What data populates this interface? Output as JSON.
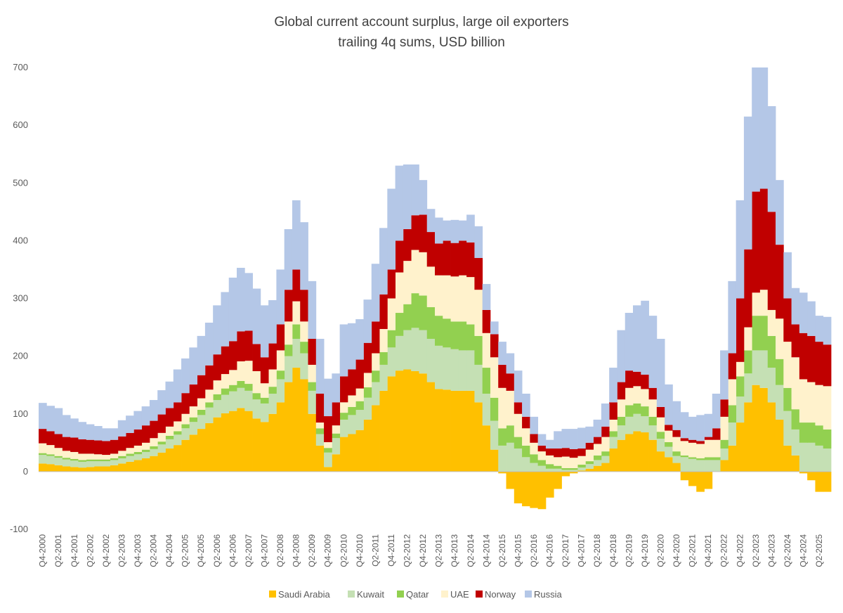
{
  "chart_data": {
    "type": "stacked_bar",
    "title": "Global current account surplus, large oil exporters",
    "subtitle": "trailing 4q sums, USD billion",
    "categories": [
      "Q4-2000",
      null,
      "Q2-2001",
      null,
      "Q4-2001",
      null,
      "Q2-2002",
      null,
      "Q4-2002",
      null,
      "Q2-2003",
      null,
      "Q4-2003",
      null,
      "Q2-2004",
      null,
      "Q4-2004",
      null,
      "Q2-2005",
      null,
      "Q4-2005",
      null,
      "Q2-2006",
      null,
      "Q4-2006",
      null,
      "Q2-2007",
      null,
      "Q4-2007",
      null,
      "Q2-2008",
      null,
      "Q4-2008",
      null,
      "Q2-2009",
      null,
      "Q4-2009",
      null,
      "Q2-2010",
      null,
      "Q4-2010",
      null,
      "Q2-2011",
      null,
      "Q4-2011",
      null,
      "Q2-2012",
      null,
      "Q4-2012",
      null,
      "Q2-2013",
      null,
      "Q4-2013",
      null,
      "Q2-2014",
      null,
      "Q4-2014",
      null,
      "Q2-2015",
      null,
      "Q4-2015",
      null,
      "Q2-2016",
      null,
      "Q4-2016",
      null,
      "Q2-2017",
      null,
      "Q4-2017",
      null,
      "Q2-2018",
      null,
      "Q4-2018",
      null,
      "Q2-2019",
      null,
      "Q4-2019",
      null,
      "Q2-2020",
      null,
      "Q4-2020",
      null,
      "Q2-2021",
      null,
      "Q4-2021",
      null,
      "Q2-2022",
      null,
      "Q4-2022",
      null,
      "Q2-2023",
      null,
      "Q4-2023",
      null,
      "Q2-2024",
      null,
      "Q4-2024",
      null,
      "Q2-2025",
      null
    ],
    "series": [
      {
        "name": "Saudi Arabia",
        "color": "#ffc000",
        "values": [
          14,
          13,
          11,
          9,
          8,
          7,
          8,
          9,
          9,
          11,
          14,
          17,
          20,
          23,
          27,
          33,
          40,
          46,
          55,
          64,
          74,
          84,
          94,
          101,
          105,
          110,
          105,
          92,
          86,
          100,
          120,
          155,
          180,
          160,
          100,
          45,
          8,
          30,
          60,
          65,
          72,
          90,
          115,
          140,
          165,
          175,
          177,
          174,
          170,
          155,
          143,
          142,
          140,
          140,
          140,
          120,
          80,
          38,
          -3,
          -30,
          -55,
          -60,
          -63,
          -65,
          -45,
          -30,
          -8,
          -3,
          2,
          5,
          10,
          15,
          40,
          55,
          65,
          70,
          68,
          55,
          35,
          25,
          15,
          -15,
          -25,
          -35,
          -30,
          0,
          20,
          45,
          85,
          120,
          150,
          145,
          120,
          90,
          45,
          28,
          -3,
          -15,
          -35,
          -35
        ]
      },
      {
        "name": "Kuwait",
        "color": "#c5e0b4",
        "values": [
          15,
          14,
          13,
          12,
          11,
          10,
          10,
          9,
          9,
          9,
          9,
          10,
          10,
          11,
          12,
          14,
          16,
          18,
          20,
          22,
          24,
          27,
          30,
          32,
          34,
          35,
          35,
          33,
          32,
          35,
          40,
          45,
          50,
          45,
          40,
          20,
          25,
          28,
          30,
          33,
          35,
          38,
          40,
          45,
          50,
          60,
          68,
          75,
          75,
          75,
          75,
          73,
          72,
          70,
          70,
          65,
          55,
          50,
          45,
          50,
          40,
          25,
          15,
          10,
          5,
          5,
          3,
          3,
          5,
          8,
          10,
          12,
          20,
          25,
          30,
          30,
          28,
          25,
          22,
          18,
          12,
          25,
          22,
          20,
          20,
          20,
          20,
          40,
          45,
          50,
          60,
          65,
          60,
          60,
          60,
          45,
          50,
          50,
          45,
          40
        ]
      },
      {
        "name": "Qatar",
        "color": "#92d050",
        "values": [
          3,
          3,
          3,
          3,
          3,
          3,
          3,
          3,
          3,
          3,
          4,
          4,
          4,
          4,
          5,
          5,
          6,
          6,
          7,
          8,
          9,
          9,
          10,
          11,
          11,
          12,
          12,
          11,
          10,
          12,
          15,
          20,
          25,
          20,
          15,
          10,
          8,
          8,
          12,
          14,
          15,
          18,
          20,
          22,
          30,
          40,
          45,
          60,
          60,
          55,
          52,
          50,
          48,
          50,
          45,
          50,
          45,
          40,
          30,
          30,
          20,
          20,
          15,
          10,
          8,
          5,
          3,
          3,
          5,
          5,
          8,
          8,
          10,
          15,
          20,
          18,
          17,
          15,
          12,
          8,
          8,
          3,
          3,
          3,
          5,
          5,
          15,
          30,
          35,
          40,
          60,
          60,
          55,
          45,
          40,
          35,
          35,
          35,
          35,
          33
        ]
      },
      {
        "name": "UAE",
        "color": "#fff2cc",
        "values": [
          17,
          16,
          14,
          12,
          12,
          11,
          10,
          9,
          8,
          8,
          9,
          10,
          11,
          12,
          14,
          15,
          16,
          17,
          18,
          19,
          20,
          22,
          24,
          25,
          26,
          34,
          40,
          38,
          25,
          30,
          35,
          40,
          40,
          35,
          30,
          10,
          10,
          14,
          18,
          20,
          22,
          25,
          30,
          40,
          55,
          70,
          75,
          75,
          75,
          70,
          70,
          75,
          78,
          80,
          82,
          80,
          60,
          70,
          70,
          60,
          40,
          30,
          20,
          15,
          15,
          15,
          20,
          18,
          15,
          20,
          20,
          25,
          20,
          30,
          30,
          30,
          30,
          30,
          25,
          20,
          25,
          25,
          25,
          25,
          30,
          30,
          40,
          45,
          25,
          40,
          40,
          45,
          45,
          70,
          80,
          90,
          75,
          70,
          70,
          75
        ]
      },
      {
        "name": "Norway",
        "color": "#c00000",
        "values": [
          25,
          24,
          24,
          24,
          25,
          25,
          24,
          24,
          24,
          24,
          25,
          26,
          28,
          30,
          30,
          32,
          32,
          33,
          36,
          38,
          40,
          42,
          45,
          48,
          50,
          52,
          52,
          47,
          45,
          45,
          45,
          55,
          55,
          55,
          45,
          50,
          45,
          40,
          45,
          45,
          50,
          52,
          55,
          60,
          50,
          55,
          55,
          60,
          65,
          60,
          55,
          60,
          58,
          60,
          60,
          55,
          40,
          40,
          40,
          30,
          20,
          20,
          15,
          10,
          12,
          15,
          15,
          15,
          13,
          12,
          12,
          18,
          30,
          30,
          30,
          25,
          25,
          20,
          18,
          10,
          12,
          5,
          5,
          5,
          5,
          20,
          30,
          45,
          110,
          135,
          175,
          175,
          170,
          128,
          75,
          57,
          80,
          80,
          75,
          72
        ]
      },
      {
        "name": "Russia",
        "color": "#b4c7e7",
        "values": [
          45,
          44,
          45,
          38,
          33,
          30,
          27,
          25,
          22,
          20,
          28,
          30,
          32,
          33,
          36,
          42,
          46,
          57,
          60,
          64,
          68,
          74,
          85,
          94,
          110,
          110,
          100,
          96,
          90,
          75,
          95,
          105,
          120,
          117,
          100,
          95,
          65,
          50,
          90,
          80,
          70,
          75,
          100,
          115,
          140,
          130,
          112,
          88,
          60,
          40,
          45,
          35,
          40,
          35,
          48,
          55,
          45,
          22,
          40,
          35,
          55,
          40,
          30,
          20,
          15,
          30,
          33,
          35,
          36,
          28,
          30,
          40,
          60,
          90,
          100,
          115,
          128,
          125,
          118,
          70,
          50,
          45,
          40,
          45,
          40,
          60,
          85,
          125,
          170,
          230,
          215,
          210,
          183,
          112,
          80,
          63,
          70,
          60,
          45,
          48
        ]
      }
    ],
    "ylim": [
      -100,
      700
    ],
    "yticks": [
      -100,
      0,
      100,
      200,
      300,
      400,
      500,
      600,
      700
    ]
  }
}
